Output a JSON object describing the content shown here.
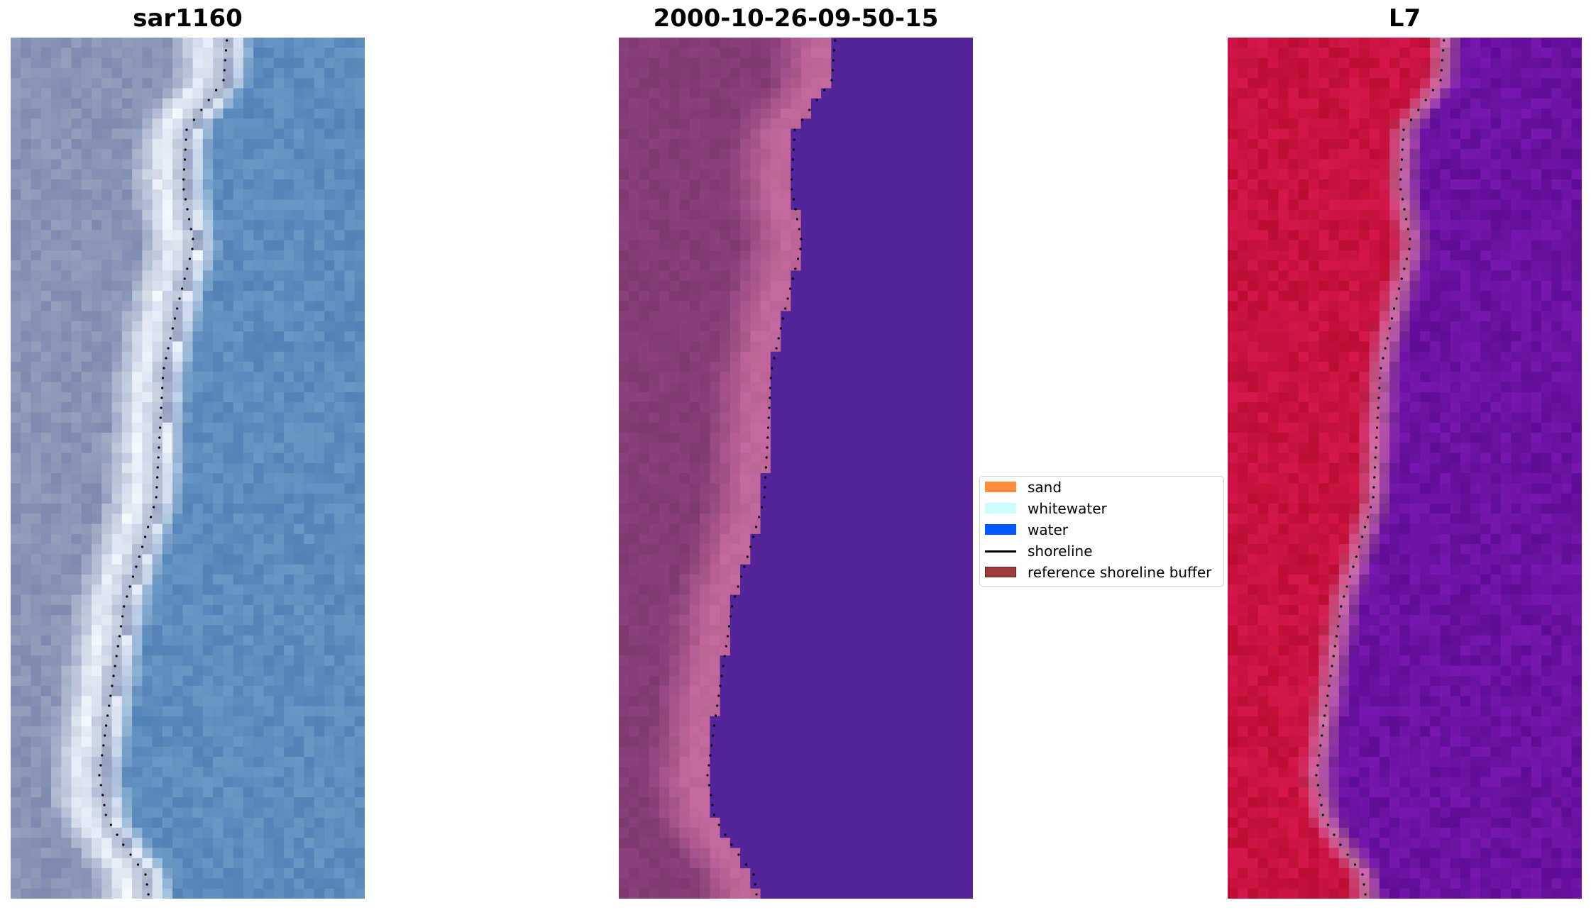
{
  "panels": [
    {
      "title": "sar1160",
      "kind": "rgb"
    },
    {
      "title": "2000-10-26-09-50-15",
      "kind": "classified"
    },
    {
      "title": "L7",
      "kind": "index"
    }
  ],
  "legend": {
    "items": [
      {
        "label": "sand",
        "type": "patch",
        "color": "#ff8c3f"
      },
      {
        "label": "whitewater",
        "type": "patch",
        "color": "#ccfffe"
      },
      {
        "label": "water",
        "type": "patch",
        "color": "#0059ff"
      },
      {
        "label": "shoreline",
        "type": "line",
        "color": "#000000"
      },
      {
        "label": "reference shoreline buffer",
        "type": "patch",
        "color": "#9e3b3b"
      }
    ]
  },
  "colors": {
    "rgb_land": "#8795b6",
    "rgb_water": "#5d8dbd",
    "rgb_surf": "#eef2fb",
    "class_land": "#843d75",
    "class_beach": "#c0669a",
    "class_water": "#53249a",
    "index_land": "#c8123f",
    "index_water": "#6b12a3",
    "shoreline_dots": "#000000"
  }
}
